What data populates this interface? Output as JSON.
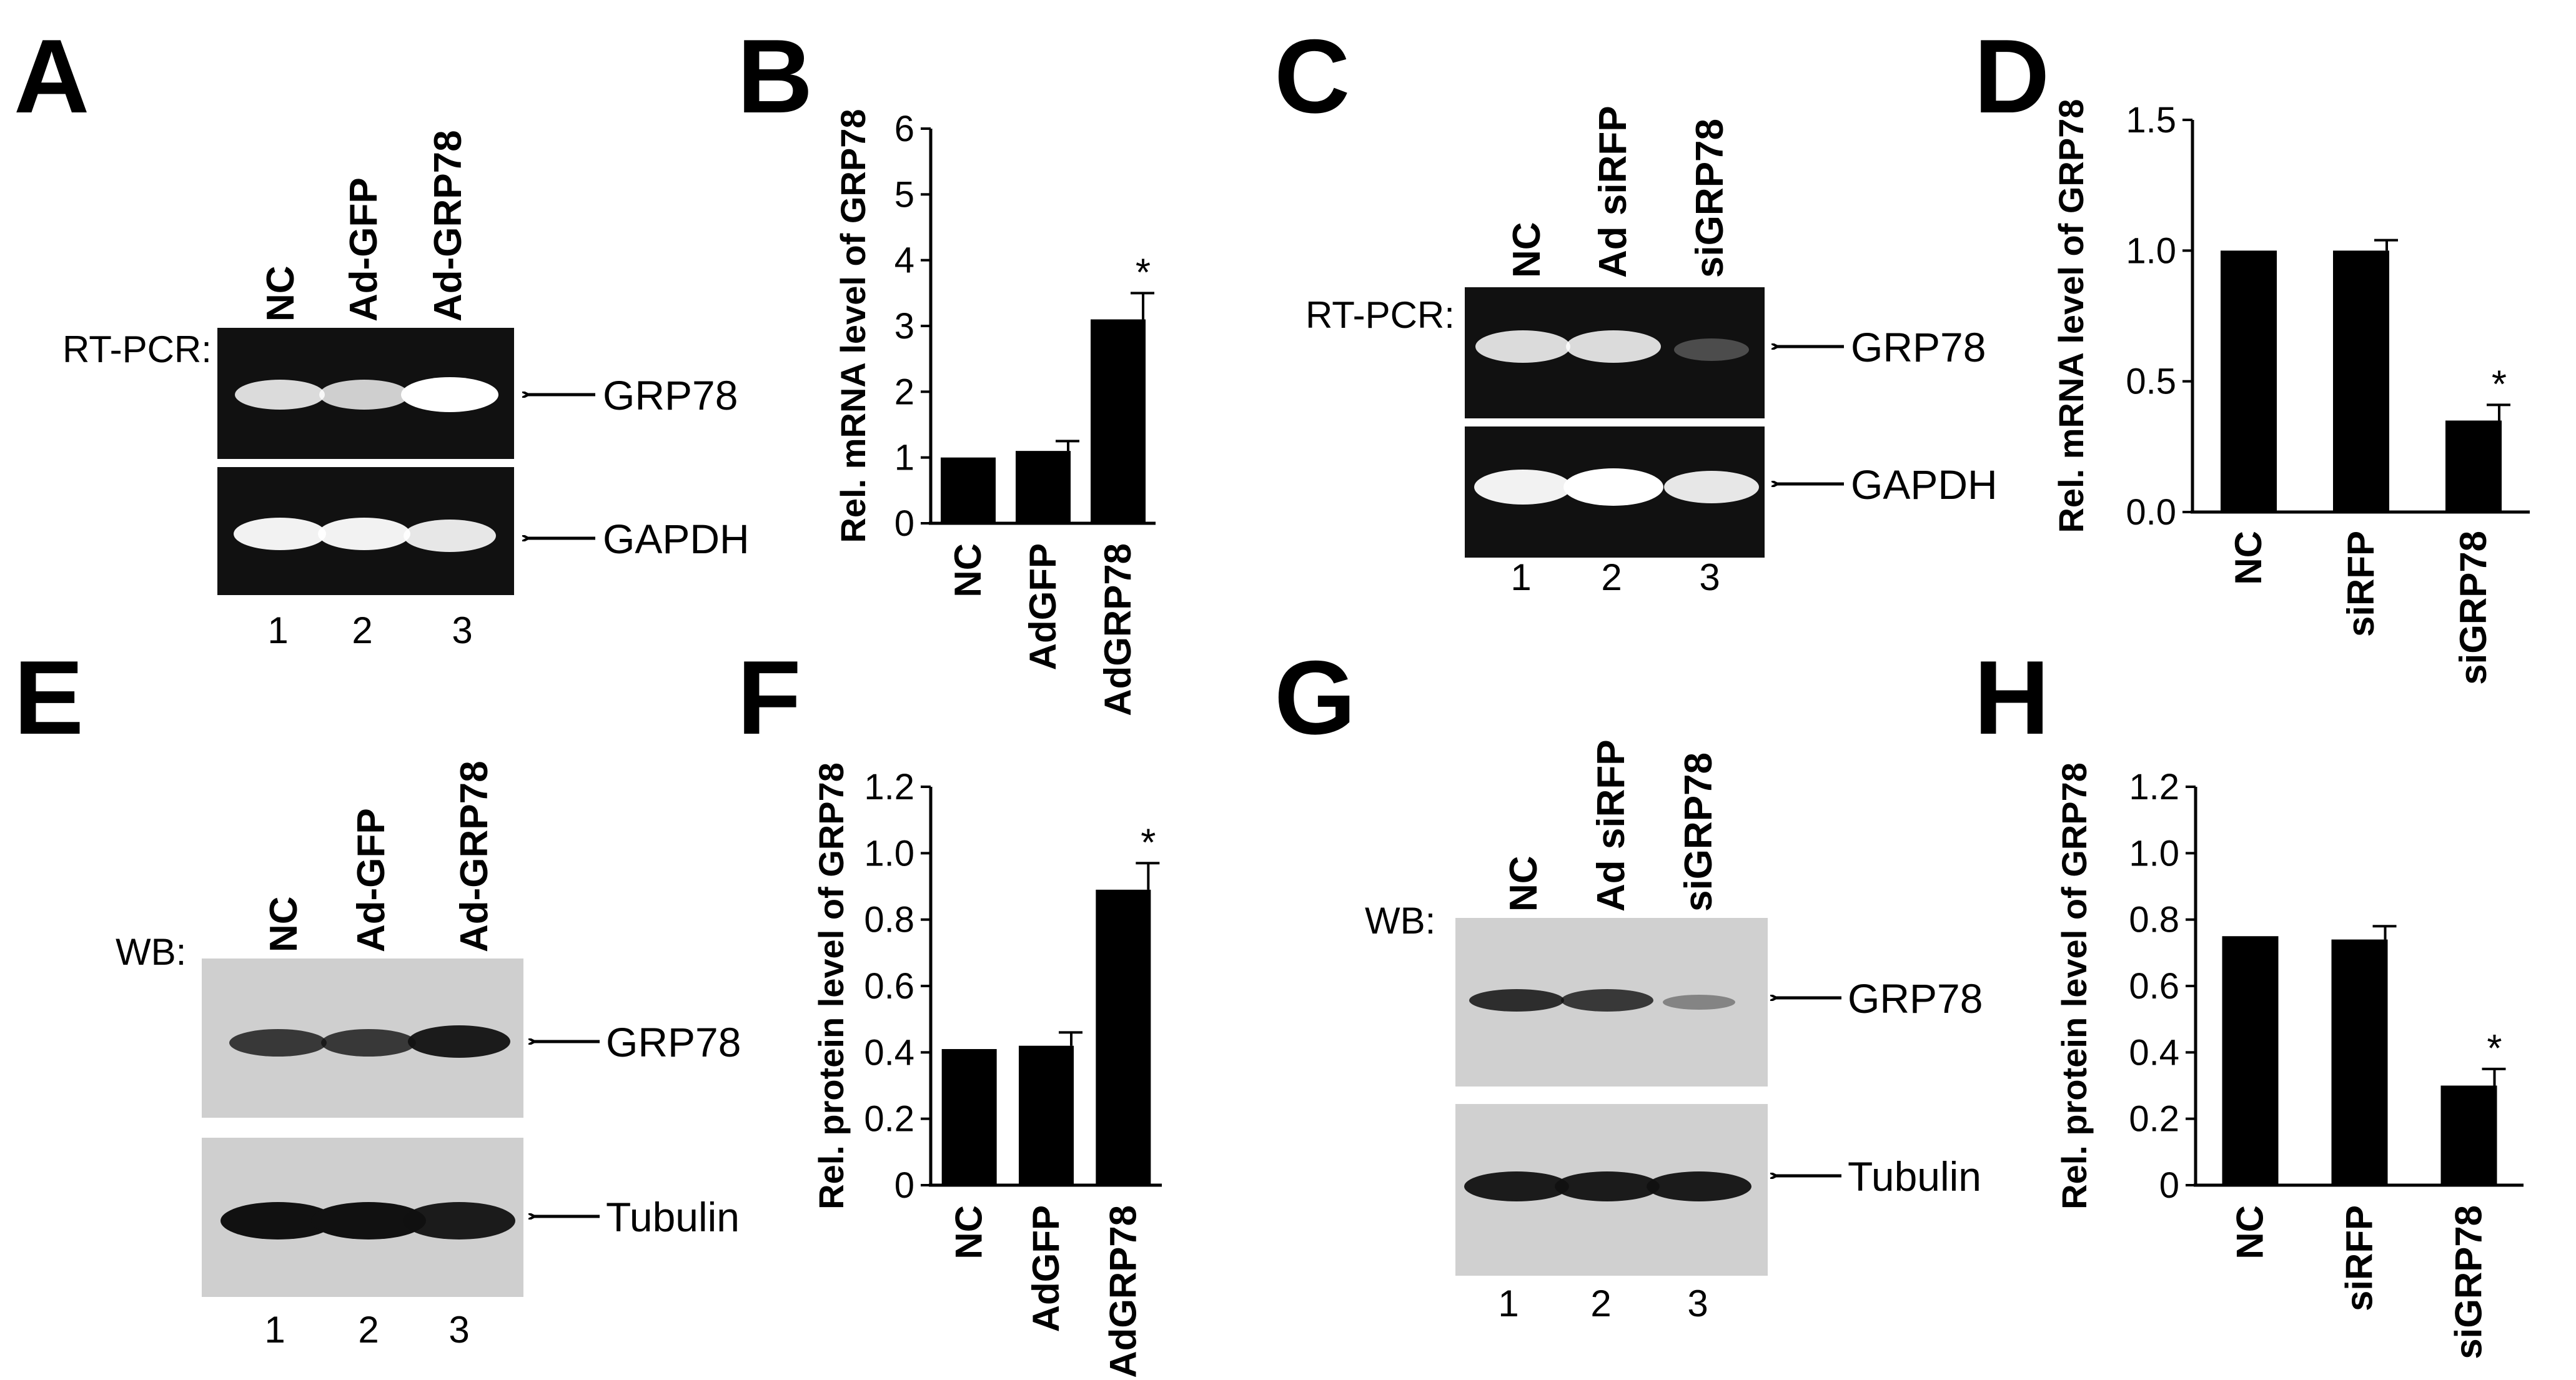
{
  "panel_letters": {
    "A": "A",
    "B": "B",
    "C": "C",
    "D": "D",
    "E": "E",
    "F": "F",
    "G": "G",
    "H": "H"
  },
  "gels": {
    "A": {
      "method_label": "RT-PCR:",
      "lanes": [
        "NC",
        "Ad-GFP",
        "Ad-GRP78"
      ],
      "bands": [
        "GRP78",
        "GAPDH"
      ],
      "lane_numbers": [
        "1",
        "2",
        "3"
      ],
      "intensities": [
        [
          0.85,
          0.8,
          1.0
        ],
        [
          0.95,
          0.95,
          0.9
        ]
      ]
    },
    "C": {
      "method_label": "RT-PCR:",
      "lanes": [
        "NC",
        "Ad siRFP",
        "siGRP78"
      ],
      "bands": [
        "GRP78",
        "GAPDH"
      ],
      "lane_numbers": [
        "1",
        "2",
        "3"
      ],
      "intensities": [
        [
          0.85,
          0.85,
          0.25
        ],
        [
          0.95,
          1.0,
          0.9
        ]
      ]
    },
    "E": {
      "method_label": "WB:",
      "lanes": [
        "NC",
        "Ad-GFP",
        "Ad-GRP78"
      ],
      "bands": [
        "GRP78",
        "Tubulin"
      ],
      "lane_numbers": [
        "1",
        "2",
        "3"
      ],
      "intensities": [
        [
          0.8,
          0.8,
          0.95
        ],
        [
          1.0,
          1.0,
          0.95
        ]
      ]
    },
    "G": {
      "method_label": "WB:",
      "lanes": [
        "NC",
        "Ad siRFP",
        "siGRP78"
      ],
      "bands": [
        "GRP78",
        "Tubulin"
      ],
      "lane_numbers": [
        "1",
        "2",
        "3"
      ],
      "intensities": [
        [
          0.85,
          0.8,
          0.4
        ],
        [
          0.95,
          0.95,
          0.95
        ]
      ]
    }
  },
  "chart_data": [
    {
      "panel": "B",
      "type": "bar",
      "categories": [
        "NC",
        "AdGFP",
        "AdGRP78"
      ],
      "values": [
        1.0,
        1.1,
        3.1
      ],
      "errors": [
        0,
        0.15,
        0.4
      ],
      "significance": [
        "",
        "",
        "*"
      ],
      "xlabel": "",
      "ylabel": "Rel. mRNA level of GRP78",
      "ylim": [
        0,
        6
      ],
      "yticks": [
        0,
        1,
        2,
        3,
        4,
        5,
        6
      ],
      "ytick_labels": [
        "0",
        "1",
        "2",
        "3",
        "4",
        "5",
        "6"
      ],
      "grid": false
    },
    {
      "panel": "D",
      "type": "bar",
      "categories": [
        "NC",
        "siRFP",
        "siGRP78"
      ],
      "values": [
        1.0,
        1.0,
        0.35
      ],
      "errors": [
        0,
        0.04,
        0.06
      ],
      "significance": [
        "",
        "",
        "*"
      ],
      "xlabel": "",
      "ylabel": "Rel. mRNA level of GRP78",
      "ylim": [
        0,
        1.5
      ],
      "yticks": [
        0,
        0.5,
        1.0,
        1.5
      ],
      "ytick_labels": [
        "0.0",
        "0.5",
        "1.0",
        "1.5"
      ],
      "grid": false
    },
    {
      "panel": "F",
      "type": "bar",
      "categories": [
        "NC",
        "AdGFP",
        "AdGRP78"
      ],
      "values": [
        0.41,
        0.42,
        0.89
      ],
      "errors": [
        0,
        0.04,
        0.08
      ],
      "significance": [
        "",
        "",
        "*"
      ],
      "xlabel": "",
      "ylabel": "Rel. protein level of  GRP78",
      "ylim": [
        0,
        1.2
      ],
      "yticks": [
        0,
        0.2,
        0.4,
        0.6,
        0.8,
        1.0,
        1.2
      ],
      "ytick_labels": [
        "0",
        "0.2",
        "0.4",
        "0.6",
        "0.8",
        "1.0",
        "1.2"
      ],
      "grid": false
    },
    {
      "panel": "H",
      "type": "bar",
      "categories": [
        "NC",
        "siRFP",
        "siGRP78"
      ],
      "values": [
        0.75,
        0.74,
        0.3
      ],
      "errors": [
        0,
        0.04,
        0.05
      ],
      "significance": [
        "",
        "",
        "*"
      ],
      "xlabel": "",
      "ylabel": "Rel. protein level of  GRP78",
      "ylim": [
        0,
        1.2
      ],
      "yticks": [
        0,
        0.2,
        0.4,
        0.6,
        0.8,
        1.0,
        1.2
      ],
      "ytick_labels": [
        "0",
        "0.2",
        "0.4",
        "0.6",
        "0.8",
        "1.0",
        "1.2"
      ],
      "grid": false
    }
  ]
}
